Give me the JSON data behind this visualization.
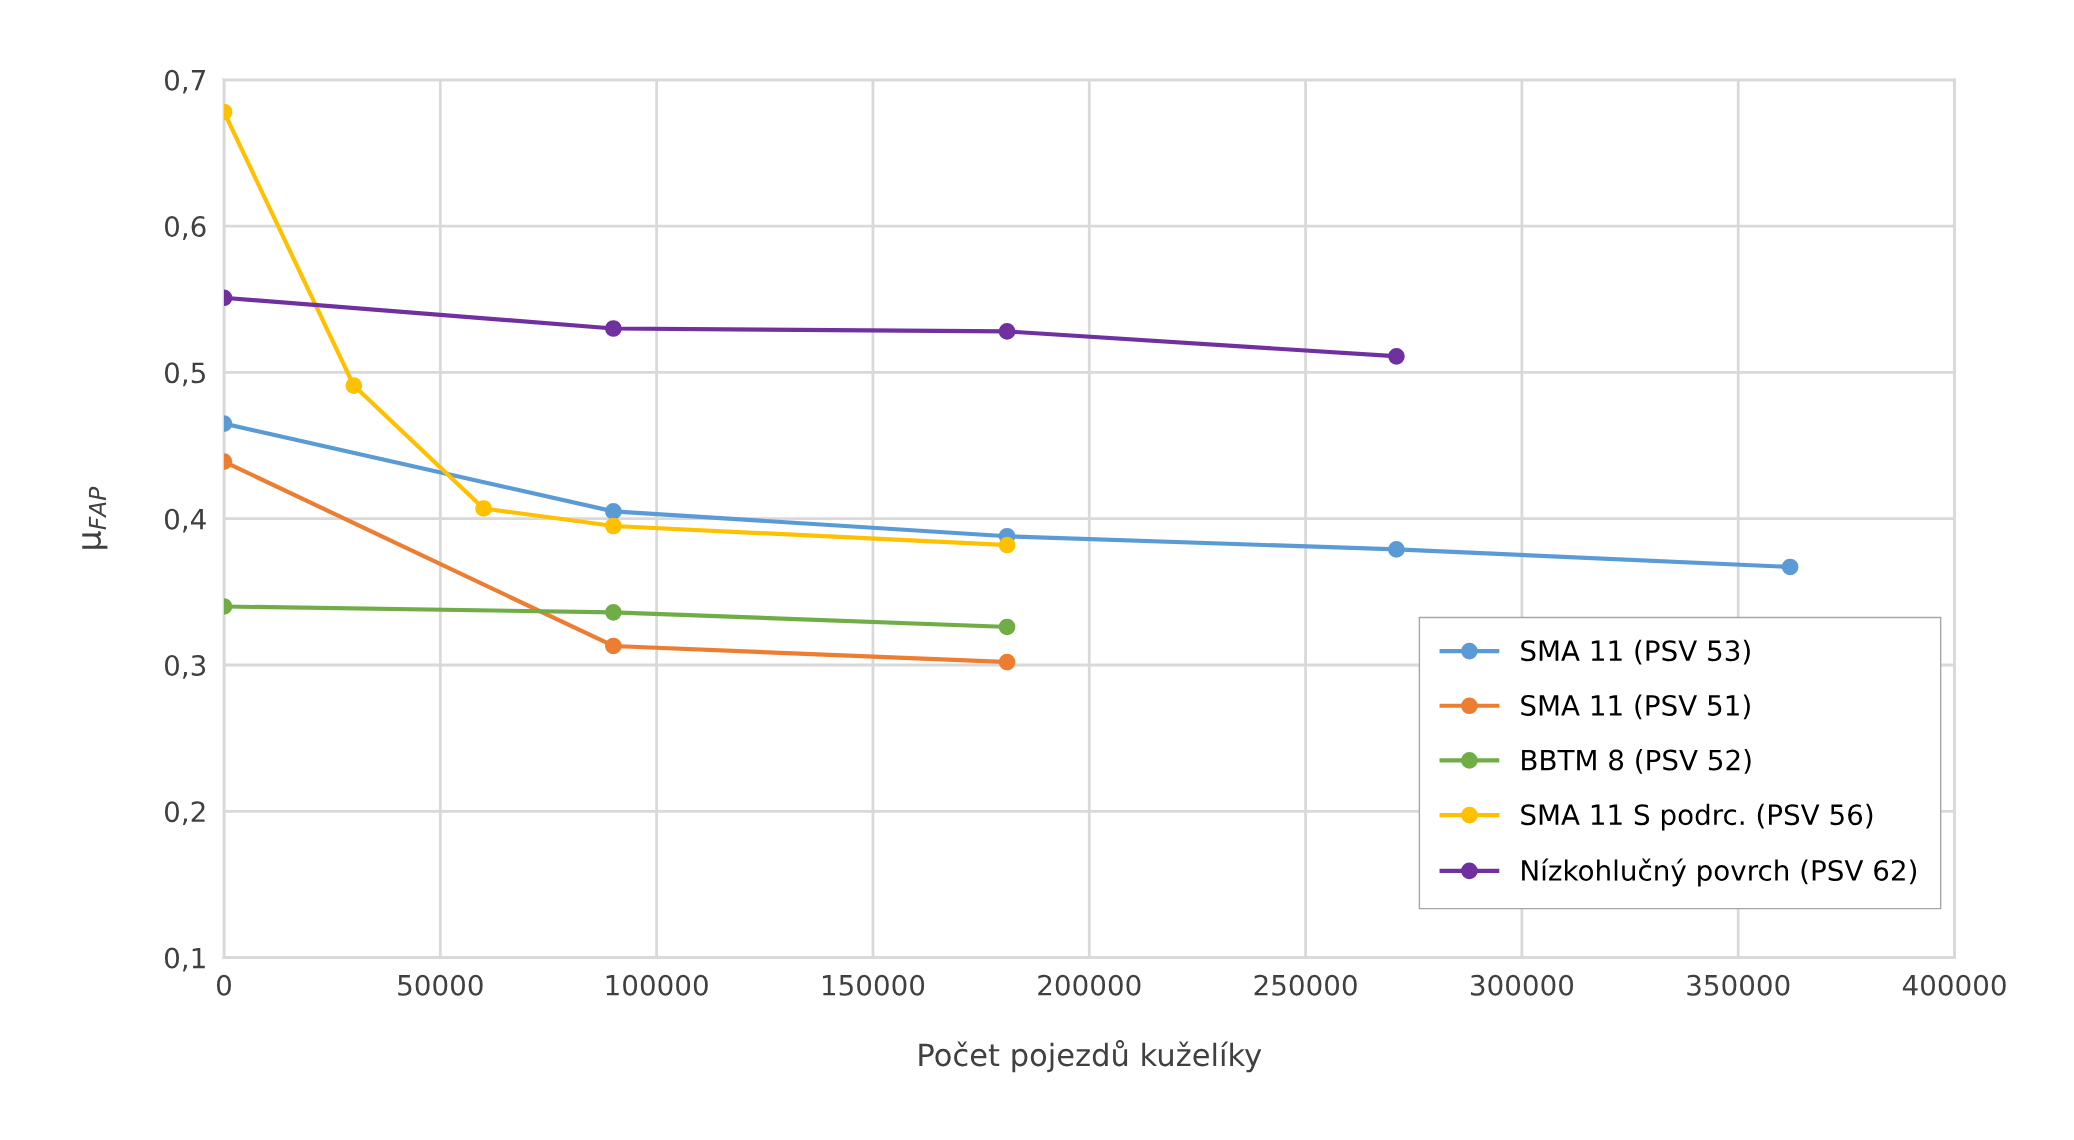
{
  "chart_data": {
    "type": "line",
    "xlabel": "Počet pojezdů kuželíky",
    "ylabel": "μ$_{FAP}$",
    "xlim": [
      0,
      400000
    ],
    "xticks": [
      0,
      50000,
      100000,
      150000,
      200000,
      250000,
      300000,
      350000,
      400000
    ],
    "ylim": [
      0.1,
      0.7
    ],
    "yticks": [
      {
        "value": 0.1,
        "label": "0,1"
      },
      {
        "value": 0.2,
        "label": "0,2"
      },
      {
        "value": 0.3,
        "label": "0,3"
      },
      {
        "value": 0.4,
        "label": "0,4"
      },
      {
        "value": 0.5,
        "label": "0,5"
      },
      {
        "value": 0.6,
        "label": "0,6"
      },
      {
        "value": 0.7,
        "label": "0,7"
      }
    ],
    "grid": true,
    "legend": "bottom right",
    "marker": "circle",
    "line_style": "solid",
    "series": [
      {
        "name": "SMA 11 (PSV 53)",
        "color": "#5b9bd5",
        "x": [
          0,
          90000,
          181000,
          271000,
          362000
        ],
        "values": [
          0.465,
          0.405,
          0.388,
          0.379,
          0.367
        ]
      },
      {
        "name": "SMA 11 (PSV 51)",
        "color": "#ed7d31",
        "x": [
          0,
          90000,
          181000
        ],
        "values": [
          0.439,
          0.313,
          0.302
        ]
      },
      {
        "name": "BBTM 8 (PSV 52)",
        "color": "#70ad47",
        "x": [
          0,
          90000,
          181000
        ],
        "values": [
          0.34,
          0.336,
          0.326
        ]
      },
      {
        "name": "SMA 11 S podrc. (PSV 56)",
        "color": "#ffc000",
        "x": [
          0,
          30000,
          60000,
          90000,
          181000
        ],
        "values": [
          0.678,
          0.491,
          0.407,
          0.395,
          0.382
        ]
      },
      {
        "name": "Nízkohlučný povrch (PSV 62)",
        "color": "#7030a0",
        "x": [
          0,
          90000,
          181000,
          271000
        ],
        "values": [
          0.551,
          0.53,
          0.528,
          0.511
        ]
      }
    ]
  }
}
